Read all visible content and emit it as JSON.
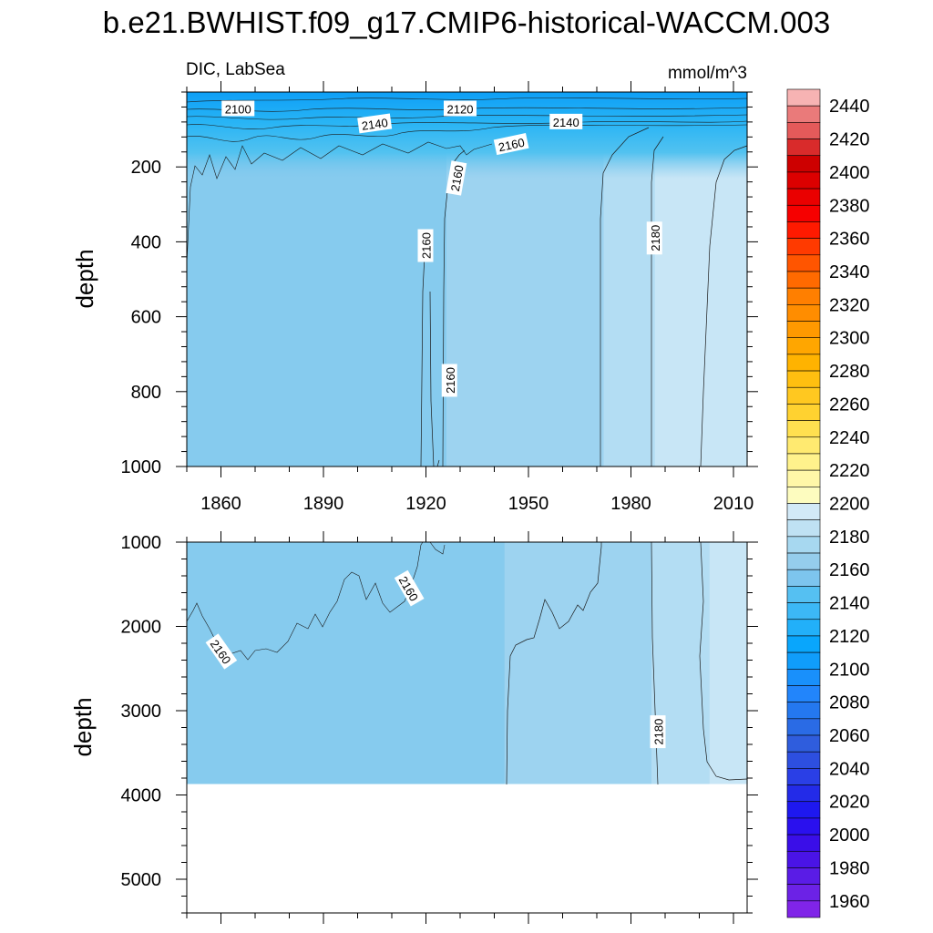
{
  "chart_data": {
    "type": "heatmap",
    "title": "b.e21.BWHIST.f09_g17.CMIP6-historical-WACCM.003",
    "subtitle_left": "DIC, LabSea",
    "subtitle_right": "mmol/m^3",
    "ylabel": "depth",
    "xlim": [
      1850,
      2014
    ],
    "x_ticks": [
      1860,
      1890,
      1920,
      1950,
      1980,
      2010
    ],
    "panels": [
      {
        "name": "upper",
        "ylim": [
          0,
          1000
        ],
        "y_ticks": [
          200,
          400,
          600,
          800,
          1000
        ],
        "shaded_regions": [
          {
            "level": "2150-2160",
            "x_start": 1850,
            "x_end": 1926
          },
          {
            "level": "2160-2170",
            "x_start": 1926,
            "x_end": 1972
          },
          {
            "level": "2170-2180",
            "x_start": 1972,
            "x_end": 1987
          },
          {
            "level": "2180-2190",
            "x_start": 1987,
            "x_end": 2014
          }
        ],
        "contour_labels": [
          {
            "text": "2100",
            "x": 1865,
            "depth": 45,
            "angle": 0
          },
          {
            "text": "2120",
            "x": 1930,
            "depth": 45,
            "angle": 0
          },
          {
            "text": "2140",
            "x": 1905,
            "depth": 85,
            "angle": -8
          },
          {
            "text": "2140",
            "x": 1961,
            "depth": 80,
            "angle": 0
          },
          {
            "text": "2160",
            "x": 1945,
            "depth": 140,
            "angle": -12
          },
          {
            "text": "2160",
            "x": 1929,
            "depth": 230,
            "angle": -80
          },
          {
            "text": "2160",
            "x": 1920,
            "depth": 410,
            "angle": -90
          },
          {
            "text": "2160",
            "x": 1927,
            "depth": 770,
            "angle": -90
          },
          {
            "text": "2180",
            "x": 1987,
            "depth": 390,
            "angle": -90
          }
        ]
      },
      {
        "name": "lower",
        "ylim": [
          1000,
          5400
        ],
        "y_ticks": [
          1000,
          2000,
          3000,
          4000,
          5000
        ],
        "bottom_depth": 3870,
        "shaded_regions": [
          {
            "level": "2150-2160",
            "x_start": 1850,
            "x_end": 1943
          },
          {
            "level": "2160-2170",
            "x_start": 1943,
            "x_end": 1986
          },
          {
            "level": "2170-2180",
            "x_start": 1986,
            "x_end": 2003
          },
          {
            "level": "2180-2190",
            "x_start": 2003,
            "x_end": 2014
          }
        ],
        "contour_labels": [
          {
            "text": "2160",
            "x": 1915,
            "depth": 1550,
            "angle": 60
          },
          {
            "text": "2160",
            "x": 1860,
            "depth": 2300,
            "angle": 55
          },
          {
            "text": "2180",
            "x": 1988,
            "depth": 3250,
            "angle": -90
          }
        ]
      }
    ],
    "colorbar": {
      "labels": [
        2440,
        2420,
        2400,
        2380,
        2360,
        2340,
        2320,
        2300,
        2280,
        2260,
        2240,
        2220,
        2200,
        2180,
        2160,
        2140,
        2120,
        2100,
        2080,
        2060,
        2040,
        2020,
        2000,
        1980,
        1960
      ],
      "colors": [
        "#f7b3b3",
        "#ea7a7a",
        "#e45a5a",
        "#d92b2b",
        "#cd0000",
        "#dc0000",
        "#ea0000",
        "#f60000",
        "#ff1a00",
        "#ff3a00",
        "#ff5500",
        "#ff6a00",
        "#ff7f00",
        "#ff8d00",
        "#ff9900",
        "#ffa600",
        "#ffb300",
        "#ffbf10",
        "#ffc820",
        "#ffd230",
        "#ffe050",
        "#ffea70",
        "#fff28c",
        "#fff7a8",
        "#fdfcbf",
        "#d2e9f7",
        "#bfe1f3",
        "#a7d8f0",
        "#95cdec",
        "#7dc5ee",
        "#55c0f2",
        "#3cb8f6",
        "#22b0f9",
        "#09a6fc",
        "#109dfb",
        "#1990fb",
        "#2285fb",
        "#2478ef",
        "#2a6be5",
        "#2f5ddd",
        "#2d4fe0",
        "#2a3fe6",
        "#232be8",
        "#1e18ef",
        "#2a10ee",
        "#3a0ee8",
        "#4a14e6",
        "#5a1ce6",
        "#6c22e6",
        "#8024e8"
      ],
      "break_label": 2200
    }
  }
}
